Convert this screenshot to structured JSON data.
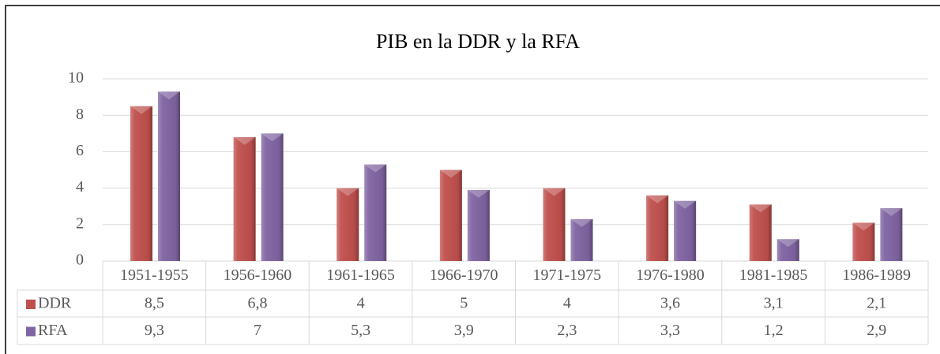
{
  "chart_data": {
    "type": "bar",
    "title": "PIB en la DDR y la RFA",
    "categories": [
      "1951-1955",
      "1956-1960",
      "1961-1965",
      "1966-1970",
      "1971-1975",
      "1976-1980",
      "1981-1985",
      "1986-1989"
    ],
    "series": [
      {
        "name": "DDR",
        "color": "#c0504d",
        "values": [
          8.5,
          6.8,
          4,
          5,
          4,
          3.6,
          3.1,
          2.1
        ],
        "value_labels": [
          "8,5",
          "6,8",
          "4",
          "5",
          "4",
          "3,6",
          "3,1",
          "2,1"
        ]
      },
      {
        "name": "RFA",
        "color": "#8064a2",
        "values": [
          9.3,
          7,
          5.3,
          3.9,
          2.3,
          3.3,
          1.2,
          2.9
        ],
        "value_labels": [
          "9,3",
          "7",
          "5,3",
          "3,9",
          "2,3",
          "3,3",
          "1,2",
          "2,9"
        ]
      }
    ],
    "ylim": [
      0,
      10
    ],
    "yticks": [
      0,
      2,
      4,
      6,
      8,
      10
    ],
    "grid": true
  }
}
